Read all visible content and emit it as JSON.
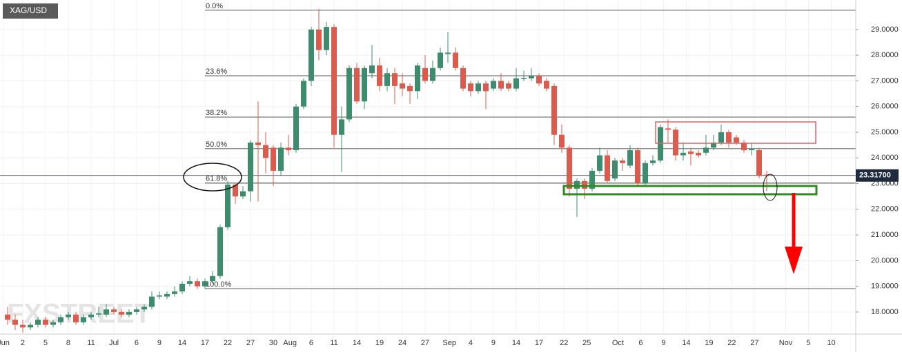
{
  "chart_data": {
    "type": "candlestick",
    "title": "XAG/USD",
    "watermark": "FXSTREET",
    "up_color": "#3d8c6e",
    "down_color": "#d95c4e",
    "grid": true,
    "open": [
      17.9,
      17.7,
      17.5,
      17.4,
      17.5,
      17.7,
      17.5,
      17.6,
      17.8,
      17.9,
      17.6,
      17.8,
      17.9,
      17.9,
      18.1,
      18.0,
      17.9,
      18.0,
      18.1,
      18.2,
      18.6,
      18.6,
      18.7,
      18.8,
      19.1,
      19.2,
      19.0,
      19.2,
      19.4,
      21.3,
      22.96,
      22.5,
      22.7,
      24.6,
      24.5,
      24.4,
      23.5,
      24.4,
      24.3,
      26.0,
      27.0,
      29.0,
      28.2,
      29.1,
      24.9,
      25.5,
      27.5,
      26.2,
      27.3,
      27.6,
      26.8,
      27.3,
      26.9,
      26.8,
      26.6,
      27.5,
      27.0,
      27.5,
      28.05,
      28.1,
      27.5,
      26.9,
      26.6,
      26.9,
      26.7,
      27.0,
      26.9,
      26.7,
      27.08,
      27.1,
      27.2,
      27.0,
      26.8,
      24.9,
      24.4,
      22.8,
      23.1,
      22.8,
      23.5,
      24.1,
      23.2,
      23.9,
      23.7,
      24.3,
      23.0,
      23.8,
      23.9,
      25.15,
      25.1,
      24.1,
      24.25,
      24.2,
      24.2,
      24.4,
      24.6,
      25.0,
      24.8,
      24.6,
      24.3,
      24.3,
      23.35
    ],
    "high": [
      18.2,
      17.9,
      17.7,
      17.6,
      17.8,
      17.8,
      17.7,
      17.9,
      18.0,
      18.0,
      17.9,
      18.0,
      18.2,
      18.3,
      18.2,
      18.1,
      18.1,
      18.2,
      18.3,
      18.8,
      18.8,
      18.8,
      19.0,
      19.2,
      19.4,
      19.3,
      19.3,
      19.6,
      21.4,
      23.1,
      23.0,
      22.9,
      24.7,
      26.2,
      25.0,
      24.5,
      24.6,
      24.9,
      26.1,
      27.1,
      29.1,
      29.8,
      29.3,
      29.2,
      26.0,
      27.6,
      27.7,
      27.6,
      28.4,
      27.9,
      27.5,
      27.5,
      27.3,
      26.9,
      27.7,
      28.0,
      27.8,
      28.3,
      28.9,
      28.3,
      27.6,
      27.0,
      27.0,
      27.0,
      27.1,
      27.3,
      27.0,
      27.5,
      27.4,
      27.5,
      27.3,
      27.1,
      26.9,
      25.3,
      24.5,
      23.2,
      23.2,
      23.6,
      24.4,
      24.3,
      24.0,
      24.0,
      24.5,
      24.4,
      23.9,
      24.1,
      25.3,
      25.5,
      25.2,
      24.6,
      24.4,
      24.3,
      24.9,
      24.9,
      25.3,
      25.1,
      24.9,
      24.7,
      24.6,
      24.4,
      23.5
    ],
    "low": [
      17.5,
      17.3,
      17.2,
      17.3,
      17.4,
      17.4,
      17.4,
      17.5,
      17.7,
      17.5,
      17.5,
      17.7,
      17.8,
      17.8,
      17.9,
      17.8,
      17.8,
      17.9,
      18.0,
      18.1,
      18.5,
      18.5,
      18.6,
      18.7,
      19.0,
      18.9,
      18.9,
      19.1,
      19.3,
      21.2,
      22.2,
      22.4,
      22.3,
      22.3,
      23.4,
      22.9,
      23.3,
      24.1,
      24.2,
      25.9,
      26.8,
      27.8,
      28.0,
      24.4,
      23.45,
      25.4,
      26.1,
      25.9,
      27.1,
      26.6,
      26.6,
      26.1,
      26.4,
      26.1,
      26.3,
      26.9,
      26.9,
      27.4,
      27.7,
      27.4,
      26.6,
      26.4,
      26.5,
      25.9,
      26.6,
      26.6,
      26.6,
      26.6,
      27.0,
      27.0,
      26.8,
      26.6,
      24.5,
      24.2,
      22.5,
      21.7,
      22.4,
      22.7,
      23.4,
      23.0,
      23.1,
      23.5,
      23.6,
      22.9,
      22.9,
      23.7,
      23.8,
      24.6,
      23.9,
      23.9,
      23.7,
      24.0,
      24.1,
      24.3,
      24.5,
      24.4,
      24.5,
      24.2,
      24.1,
      23.2,
      22.7
    ],
    "close": [
      17.7,
      17.5,
      17.4,
      17.5,
      17.7,
      17.5,
      17.6,
      17.8,
      17.9,
      17.6,
      17.8,
      17.9,
      17.95,
      18.1,
      18.0,
      17.9,
      18.0,
      18.1,
      18.2,
      18.6,
      18.65,
      18.7,
      18.8,
      19.1,
      19.2,
      19.0,
      19.2,
      19.4,
      21.3,
      22.96,
      22.5,
      22.7,
      24.6,
      24.5,
      24.0,
      23.5,
      24.4,
      24.3,
      26.0,
      27.0,
      29.0,
      28.2,
      29.1,
      24.9,
      25.5,
      27.5,
      26.2,
      27.5,
      27.6,
      26.8,
      27.3,
      26.8,
      26.7,
      26.6,
      27.6,
      27.0,
      27.5,
      28.1,
      28.1,
      27.5,
      26.7,
      26.6,
      26.9,
      26.6,
      27.0,
      26.7,
      26.7,
      27.1,
      27.12,
      27.2,
      26.9,
      26.7,
      24.9,
      24.4,
      22.8,
      23.1,
      22.8,
      23.5,
      24.1,
      23.1,
      23.9,
      23.8,
      24.3,
      23.0,
      23.8,
      23.9,
      25.2,
      25.1,
      24.1,
      24.2,
      24.15,
      24.1,
      24.4,
      24.6,
      25.0,
      24.6,
      24.6,
      24.3,
      24.35,
      23.3,
      23.3
    ],
    "xlim": [
      -1,
      111.73
    ],
    "xticks": [
      {
        "value": -0.55,
        "label": "Jun"
      },
      2,
      5,
      8,
      11,
      {
        "value": 14,
        "label": "Jul"
      },
      {
        "value": 17,
        "label": "6"
      },
      {
        "value": 20,
        "label": "9"
      },
      {
        "value": 23,
        "label": "14"
      },
      {
        "value": 26,
        "label": "17"
      },
      {
        "value": 29,
        "label": "22"
      },
      {
        "value": 32,
        "label": "27"
      },
      {
        "value": 35,
        "label": "30"
      },
      {
        "value": 37.2,
        "label": "Aug"
      },
      {
        "value": 40,
        "label": "6"
      },
      {
        "value": 43,
        "label": "11"
      },
      {
        "value": 46,
        "label": "14"
      },
      {
        "value": 49,
        "label": "19"
      },
      {
        "value": 52,
        "label": "24"
      },
      {
        "value": 55,
        "label": "27"
      },
      {
        "value": 58.2,
        "label": "Sep"
      },
      {
        "value": 61,
        "label": "4"
      },
      {
        "value": 64,
        "label": "9"
      },
      {
        "value": 67,
        "label": "14"
      },
      {
        "value": 70,
        "label": "17"
      },
      {
        "value": 73.3,
        "label": "22"
      },
      {
        "value": 76.3,
        "label": "25"
      },
      {
        "value": 80.4,
        "label": "Oct"
      },
      {
        "value": 83.4,
        "label": "6"
      },
      {
        "value": 86.4,
        "label": "9"
      },
      {
        "value": 89.4,
        "label": "14"
      },
      {
        "value": 92.4,
        "label": "19"
      },
      {
        "value": 95.4,
        "label": "22"
      },
      {
        "value": 98.4,
        "label": "27"
      },
      {
        "value": 102.5,
        "label": "Nov"
      },
      {
        "value": 105.5,
        "label": "5"
      },
      {
        "value": 108.5,
        "label": "10"
      }
    ],
    "ylim": [
      17.14,
      30.15
    ],
    "yticks": [
      {
        "value": 18,
        "label": "18.0000"
      },
      {
        "value": 19,
        "label": "19.0000"
      },
      {
        "value": 20,
        "label": "20.0000"
      },
      {
        "value": 21,
        "label": "21.0000"
      },
      {
        "value": 22,
        "label": "22.0000"
      },
      {
        "value": 23,
        "label": "23.0000"
      },
      {
        "value": 24,
        "label": "24.0000"
      },
      {
        "value": 25,
        "label": "25.0000"
      },
      {
        "value": 26,
        "label": "26.0000"
      },
      {
        "value": 27,
        "label": "27.0000"
      },
      {
        "value": 28,
        "label": "28.0000"
      },
      {
        "value": 29,
        "label": "29.0000"
      }
    ],
    "last_price": {
      "value": 23.317,
      "label": "23.31700"
    },
    "fib_levels": [
      {
        "label": "0.0%",
        "value": 29.75
      },
      {
        "label": "23.6%",
        "value": 27.2
      },
      {
        "label": "38.2%",
        "value": 25.59
      },
      {
        "label": "50.0%",
        "value": 24.36
      },
      {
        "label": "61.8%",
        "value": 23.02
      },
      {
        "label": "100.0%",
        "value": 18.91
      }
    ]
  }
}
